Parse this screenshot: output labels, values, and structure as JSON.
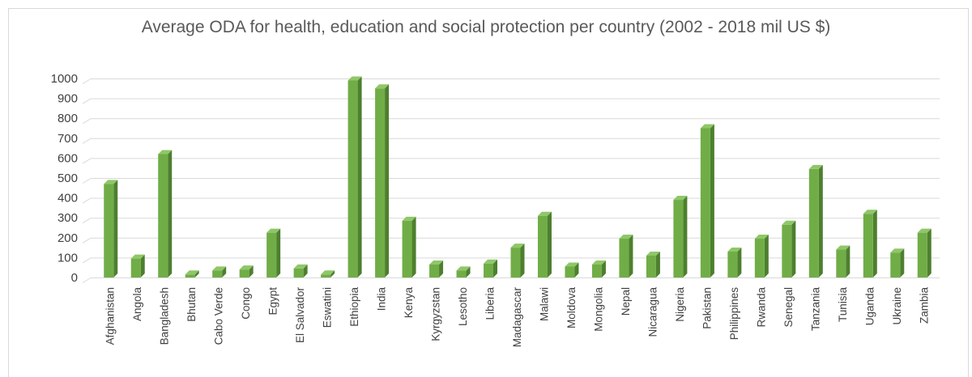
{
  "chart_data": {
    "type": "bar",
    "title": "Average ODA for health, education and social protection per country (2002 - 2018 mil US $)",
    "xlabel": "",
    "ylabel": "",
    "ylim": [
      0,
      1000
    ],
    "yticks": [
      0,
      100,
      200,
      300,
      400,
      500,
      600,
      700,
      800,
      900,
      1000
    ],
    "grid": true,
    "legend": "none",
    "bar_color": "#70ad47",
    "bar_side_color": "#4e7f2f",
    "bar_top_color": "#8fc768",
    "grid_color": "#d9d9d9",
    "categories": [
      "Afghanistan",
      "Angola",
      "Bangladesh",
      "Bhutan",
      "Cabo Verde",
      "Congo",
      "Egypt",
      "El Salvador",
      "Eswatini",
      "Ethiopia",
      "India",
      "Kenya",
      "Kyrgyzstan",
      "Lesotho",
      "Liberia",
      "Madagascar",
      "Malawi",
      "Moldova",
      "Mongolia",
      "Nepal",
      "Nicaragua",
      "Nigeria",
      "Pakistan",
      "Philippines",
      "Rwanda",
      "Senegal",
      "Tanzania",
      "Tunisia",
      "Uganda",
      "Ukraine",
      "Zambia"
    ],
    "values": [
      470,
      95,
      620,
      15,
      35,
      40,
      225,
      45,
      15,
      990,
      950,
      285,
      65,
      35,
      70,
      150,
      310,
      55,
      65,
      195,
      110,
      390,
      750,
      130,
      195,
      265,
      545,
      140,
      320,
      125,
      225
    ]
  }
}
